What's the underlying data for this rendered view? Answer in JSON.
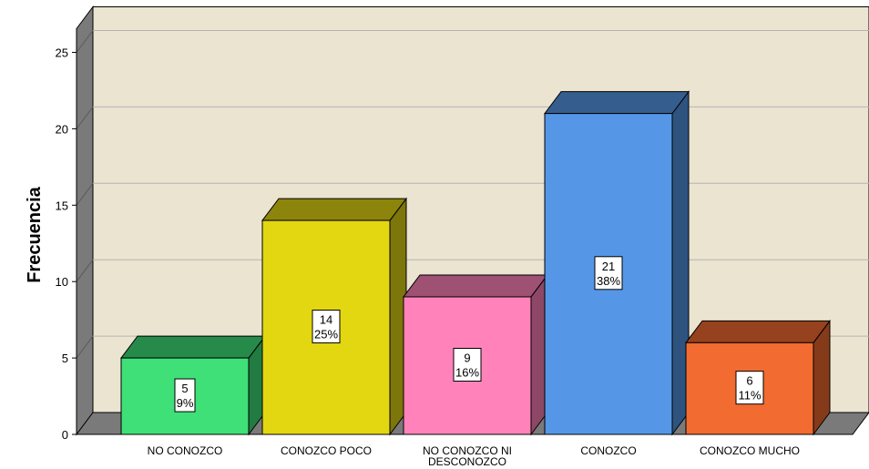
{
  "chart_data": {
    "type": "bar",
    "style": "3d",
    "ylabel": "Frecuencia",
    "xlabel": "",
    "ylim": [
      0,
      25
    ],
    "yticks": [
      0,
      5,
      10,
      15,
      20,
      25
    ],
    "grid": true,
    "categories": [
      "NO CONOZCO",
      "CONOZCO POCO",
      "NO CONOZCO NI DESCONOZCO",
      "CONOZCO",
      "CONOZCO MUCHO"
    ],
    "values": [
      5,
      14,
      9,
      21,
      6
    ],
    "percent_labels": [
      "9%",
      "25%",
      "16%",
      "38%",
      "11%"
    ],
    "colors": {
      "bars": [
        "#3ee077",
        "#e3d712",
        "#ff83ba",
        "#5597e6",
        "#f26b30"
      ],
      "plot_background": "#ebe4d1",
      "floor": "#7a7a7a",
      "gridline": "#b4b4b4"
    }
  }
}
